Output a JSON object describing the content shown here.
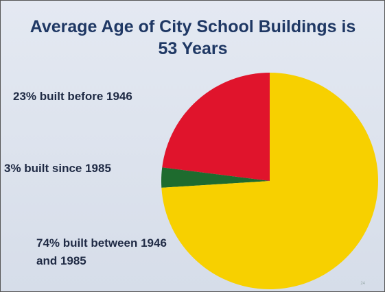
{
  "chart_data": {
    "type": "pie",
    "title": "Average Age of City School Buildings is 53 Years",
    "values": [
      23,
      3,
      74
    ],
    "value_labels": [
      "23% built before 1946",
      "3% built since 1985",
      "74% built between 1946 and 1985"
    ],
    "colors": [
      "#e0142c",
      "#1e6b2e",
      "#f7d000"
    ],
    "footer": "24"
  }
}
